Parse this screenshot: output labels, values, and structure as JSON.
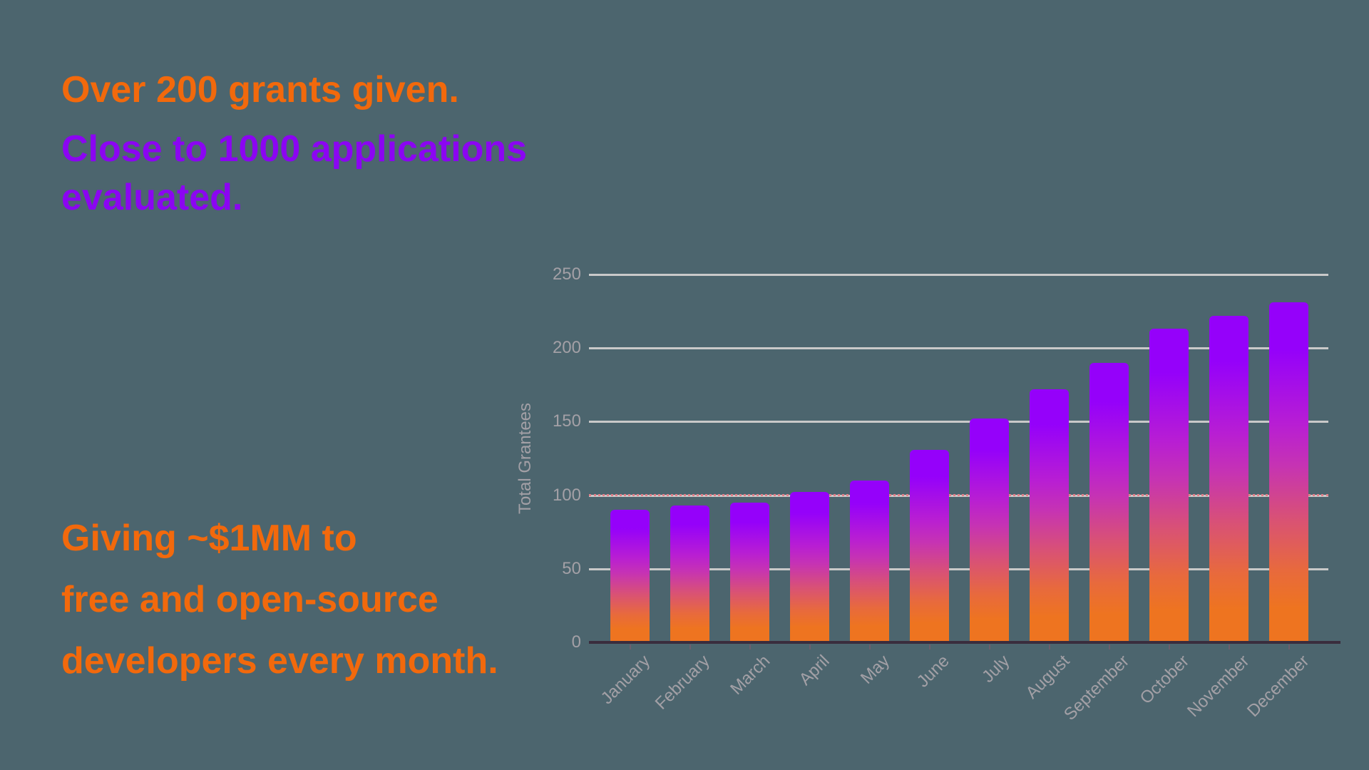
{
  "headings": {
    "grants": [
      "Over 200 grants given."
    ],
    "applications": [
      "Close to 1000 applications",
      "evaluated."
    ],
    "giving": [
      "Giving ~$1MM to",
      "free and open-source",
      "developers every month."
    ]
  },
  "colors": {
    "background": "#4c656e",
    "orange": "#f2690c",
    "purple": "#8b05f2",
    "grid": "#c9c9c9",
    "axis": "#3a2d3d",
    "tick_label": "#a3a0a6",
    "threshold": "#e2808a",
    "bar_top": "#9501fa",
    "bar_mid": "#c633b3",
    "bar_bottom": "#ee7420"
  },
  "chart_data": {
    "type": "bar",
    "title": "",
    "xlabel": "",
    "ylabel": "Total Grantees",
    "categories": [
      "January",
      "February",
      "March",
      "April",
      "May",
      "June",
      "July",
      "August",
      "September",
      "October",
      "November",
      "December"
    ],
    "values": [
      90,
      93,
      95,
      102,
      110,
      131,
      152,
      172,
      190,
      213,
      222,
      231
    ],
    "ylim": [
      0,
      250
    ],
    "yticks": [
      0,
      50,
      100,
      150,
      200,
      250
    ],
    "grid": true,
    "legend": false,
    "threshold_line": {
      "value": 100,
      "style": "dotted"
    },
    "bar_gradient_top_to_bottom": [
      "#9501fa",
      "#c633b3",
      "#ee7420"
    ],
    "x_tick_label_rotation_deg": -45
  }
}
